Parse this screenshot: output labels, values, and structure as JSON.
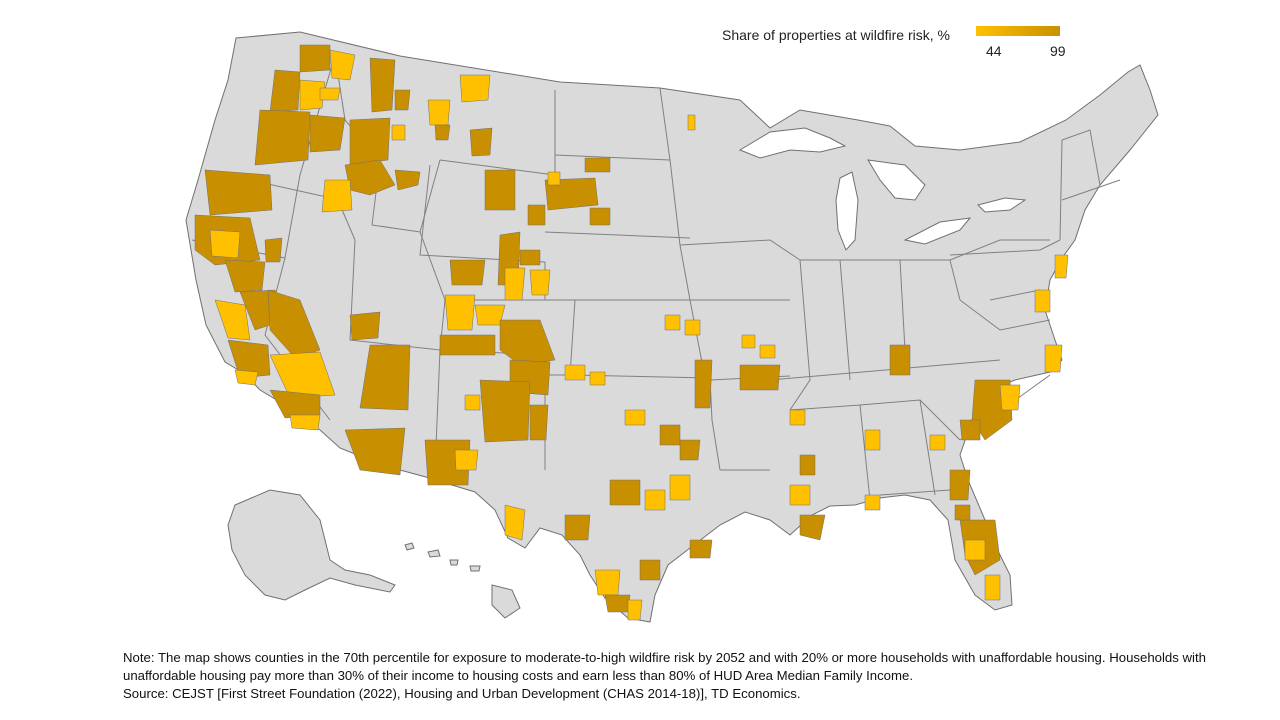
{
  "legend": {
    "title": "Share of properties at wildfire risk, %",
    "min_label": "44",
    "max_label": "99",
    "min_color": "#FFC000",
    "max_color": "#C89000"
  },
  "note": {
    "line1": "Note: The map shows counties in the 70th percentile for exposure to moderate-to-high wildfire risk by 2052 and with 20% or more households with unaffordable housing. Households with unaffordable housing pay more than 30% of their income to housing costs and earn less than 80% of HUD Area Median Family Income.",
    "line2": "Source: CEJST [First Street Foundation (2022), Housing and Urban Development (CHAS 2014-18)], TD Economics."
  },
  "colors": {
    "land": "#DADADA",
    "border": "#707070",
    "low_risk": "#FFC000",
    "high_risk": "#C89000"
  }
}
